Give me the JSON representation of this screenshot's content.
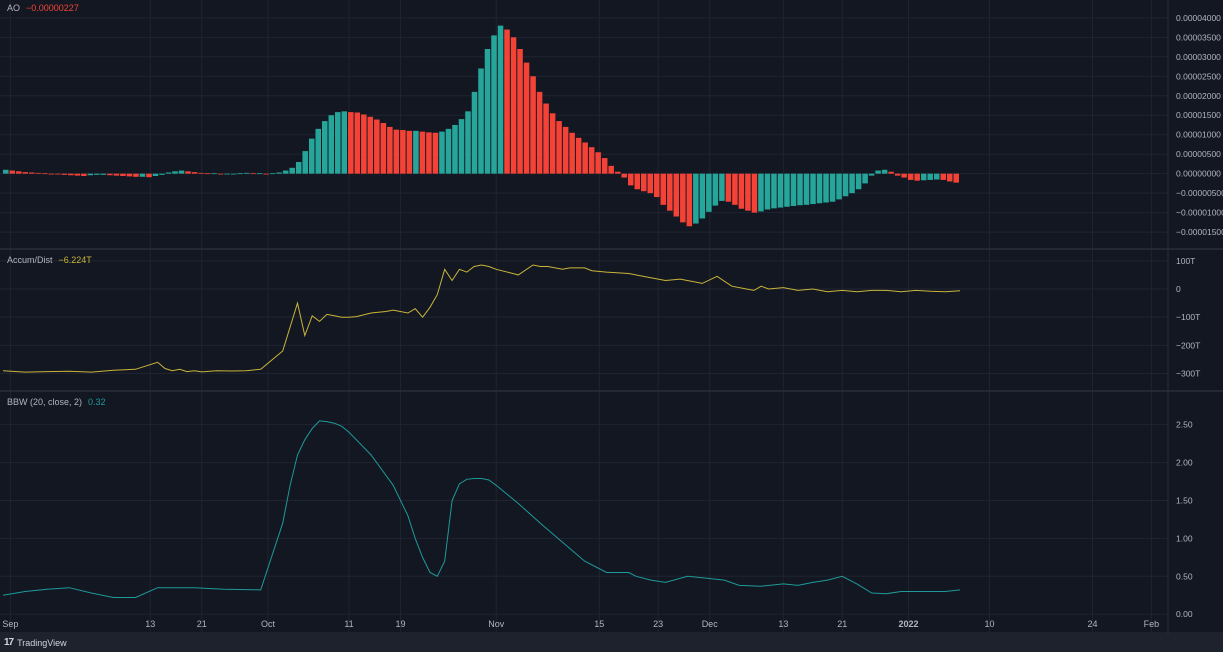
{
  "colors": {
    "background": "#131722",
    "grid": "#1f2430",
    "separator": "#2a2e39",
    "axis_text": "#b2b5be",
    "ao_up": "#26a69a",
    "ao_down": "#f44336",
    "ad_line": "#c9b53a",
    "bbw_line": "#1e9a9a"
  },
  "icons": {
    "brand_logo": "tradingview-logo"
  },
  "footer": {
    "brand": "TradingView"
  },
  "chart_data": [
    {
      "type": "bar",
      "indicator": "AO",
      "label": "AO",
      "current_value": "−0.00000227",
      "y_ticks": [
        "0.00004000",
        "0.00003500",
        "0.00003000",
        "0.00002500",
        "0.00002000",
        "0.00001500",
        "0.00001000",
        "0.00000500",
        "0.00000000",
        "−0.00000500",
        "−0.00001000",
        "−0.00001500"
      ],
      "y_tick_values": [
        4e-05,
        3.5e-05,
        3e-05,
        2.5e-05,
        2e-05,
        1.5e-05,
        1e-05,
        5e-06,
        0,
        -5e-06,
        -1e-05,
        -1.5e-05
      ],
      "ylim": [
        -1.6e-05,
        4.15e-05
      ],
      "x_start_day": 0,
      "x_end_day": 130,
      "values": [
        1e-06,
        8e-07,
        6e-07,
        4e-07,
        3e-07,
        2e-07,
        1e-07,
        -1e-07,
        -2e-07,
        -3e-07,
        -4e-07,
        -5e-07,
        -6e-07,
        -4e-07,
        -3e-07,
        -3e-07,
        -4e-07,
        -5e-07,
        -6e-07,
        -7e-07,
        -8e-07,
        -8e-07,
        -9e-07,
        -6e-07,
        -3e-07,
        3e-07,
        6e-07,
        8e-07,
        6e-07,
        4e-07,
        2e-07,
        1e-07,
        1e-07,
        0.0,
        0.0,
        0.0,
        1e-07,
        2e-07,
        1e-07,
        1e-07,
        0.0,
        1e-07,
        3e-07,
        8e-07,
        1.5e-06,
        3e-06,
        5.8e-06,
        9e-06,
        1.15e-05,
        1.35e-05,
        1.5e-05,
        1.58e-05,
        1.6e-05,
        1.58e-05,
        1.57e-05,
        1.52e-05,
        1.46e-05,
        1.39e-05,
        1.3e-05,
        1.2e-05,
        1.13e-05,
        1.12e-05,
        1.1e-05,
        1.1e-05,
        1.08e-05,
        1.06e-05,
        1.05e-05,
        1.08e-05,
        1.15e-05,
        1.25e-05,
        1.4e-05,
        1.6e-05,
        2.1e-05,
        2.7e-05,
        3.2e-05,
        3.55e-05,
        3.8e-05,
        3.7e-05,
        3.5e-05,
        3.2e-05,
        2.85e-05,
        2.5e-05,
        2.1e-05,
        1.8e-05,
        1.55e-05,
        1.35e-05,
        1.2e-05,
        1.05e-05,
        9.2e-06,
        8e-06,
        6.8e-06,
        5.5e-06,
        4e-06,
        2e-06,
        5e-07,
        -1e-06,
        -3e-06,
        -4e-06,
        -4.5e-06,
        -5e-06,
        -6e-06,
        -8e-06,
        -9.5e-06,
        -1.1e-05,
        -1.25e-05,
        -1.35e-05,
        -1.28e-05,
        -1.15e-05,
        -9.8e-06,
        -8.2e-06,
        -7e-06,
        -7.2e-06,
        -8e-06,
        -9e-06,
        -9.5e-06,
        -1e-05,
        -9.7e-06,
        -9.2e-06,
        -8.9e-06,
        -8.7e-06,
        -8.5e-06,
        -8.3e-06,
        -8.1e-06,
        -8e-06,
        -7.8e-06,
        -7.6e-06,
        -7.4e-06,
        -7.2e-06,
        -6.6e-06,
        -5.8e-06,
        -5e-06,
        -4e-06,
        -2.5e-06,
        -5e-07,
        8e-07,
        1e-06,
        5e-07,
        -5e-07,
        -1e-06,
        -1.6e-06,
        -1.8e-06,
        -1.7e-06,
        -1.6e-06,
        -1.5e-06,
        -1.6e-06,
        -2e-06,
        -2.3e-06
      ]
    },
    {
      "type": "line",
      "indicator": "Accum/Dist",
      "label": "Accum/Dist",
      "current_value": "−6.224T",
      "y_ticks": [
        "100T",
        "0",
        "−100T",
        "−200T",
        "−300T"
      ],
      "y_tick_values": [
        100,
        0,
        -100,
        -200,
        -300
      ],
      "ylim": [
        -330,
        110
      ],
      "x": [
        0,
        3,
        6,
        9,
        12,
        15,
        18,
        21,
        22,
        23,
        24,
        25,
        26,
        27,
        29,
        31,
        33,
        35,
        38,
        40,
        41,
        42,
        43,
        44,
        45,
        46,
        47,
        48,
        50,
        52,
        53,
        55,
        56,
        57,
        58,
        59,
        60,
        61,
        62,
        63,
        64,
        65,
        66,
        67,
        70,
        72,
        73,
        74,
        76,
        77,
        79,
        80,
        82,
        85,
        88,
        90,
        92,
        95,
        97,
        99,
        101,
        102,
        103,
        104,
        106,
        108,
        110,
        112,
        114,
        116,
        118,
        120,
        122,
        124,
        126,
        128,
        130
      ],
      "values": [
        -290,
        -295,
        -293,
        -292,
        -295,
        -288,
        -285,
        -260,
        -282,
        -290,
        -285,
        -293,
        -290,
        -294,
        -290,
        -291,
        -290,
        -285,
        -220,
        -50,
        -165,
        -95,
        -115,
        -90,
        -95,
        -100,
        -100,
        -98,
        -85,
        -80,
        -75,
        -85,
        -70,
        -100,
        -65,
        -20,
        70,
        30,
        70,
        60,
        80,
        85,
        80,
        70,
        50,
        85,
        80,
        80,
        70,
        75,
        75,
        65,
        60,
        55,
        40,
        30,
        35,
        20,
        45,
        10,
        0,
        -5,
        10,
        0,
        5,
        -5,
        0,
        -10,
        -5,
        -10,
        -5,
        -5,
        -10,
        -5,
        -8,
        -10,
        -6
      ]
    },
    {
      "type": "line",
      "indicator": "BBW",
      "label": "BBW (20, close, 2)",
      "current_value": "0.32",
      "y_ticks": [
        "2.50",
        "2.00",
        "1.50",
        "1.00",
        "0.50",
        "0.00"
      ],
      "y_tick_values": [
        2.5,
        2.0,
        1.5,
        1.0,
        0.5,
        0.0
      ],
      "ylim": [
        -0.05,
        2.72
      ],
      "x": [
        0,
        3,
        6,
        9,
        12,
        15,
        18,
        21,
        23,
        26,
        30,
        35,
        38,
        39,
        40,
        41,
        42,
        43,
        44,
        45,
        46,
        47,
        48,
        50,
        53,
        55,
        56,
        57,
        58,
        59,
        60,
        61,
        62,
        63,
        64,
        65,
        66,
        67,
        68,
        70,
        73,
        76,
        79,
        82,
        85,
        86,
        88,
        90,
        93,
        95,
        98,
        100,
        103,
        106,
        108,
        110,
        112,
        114,
        116,
        118,
        120,
        122,
        124,
        126,
        128,
        130
      ],
      "values": [
        0.25,
        0.3,
        0.33,
        0.35,
        0.28,
        0.22,
        0.22,
        0.35,
        0.35,
        0.35,
        0.33,
        0.32,
        1.2,
        1.7,
        2.1,
        2.3,
        2.45,
        2.55,
        2.54,
        2.52,
        2.48,
        2.4,
        2.3,
        2.1,
        1.7,
        1.3,
        1.0,
        0.75,
        0.55,
        0.5,
        0.7,
        1.5,
        1.72,
        1.78,
        1.79,
        1.79,
        1.77,
        1.7,
        1.62,
        1.46,
        1.2,
        0.95,
        0.7,
        0.55,
        0.55,
        0.5,
        0.45,
        0.42,
        0.5,
        0.48,
        0.45,
        0.38,
        0.37,
        0.4,
        0.38,
        0.42,
        0.45,
        0.5,
        0.4,
        0.28,
        0.27,
        0.3,
        0.3,
        0.3,
        0.3,
        0.32
      ]
    }
  ],
  "x_axis": {
    "labels": [
      "Sep",
      "13",
      "21",
      "Oct",
      "11",
      "19",
      "Nov",
      "15",
      "23",
      "Dec",
      "13",
      "21",
      "2022",
      "10",
      "24",
      "Feb"
    ],
    "days": [
      1,
      20,
      27,
      36,
      47,
      54,
      67,
      81,
      89,
      96,
      106,
      114,
      123,
      134,
      148,
      156
    ],
    "bold": [
      false,
      false,
      false,
      false,
      false,
      false,
      false,
      false,
      false,
      false,
      false,
      false,
      true,
      false,
      false,
      false
    ]
  }
}
